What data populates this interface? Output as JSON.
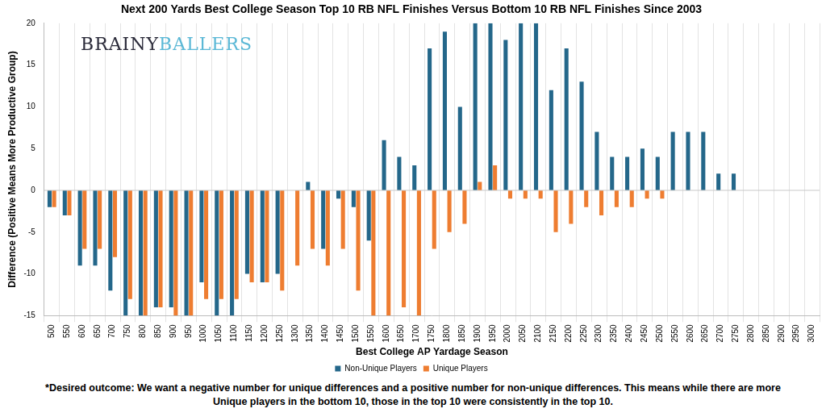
{
  "chart_data": {
    "type": "bar",
    "title": "Next 200 Yards Best College Season Top 10 RB NFL Finishes Versus Bottom 10 RB NFL Finishes Since 2003",
    "x_label": "Best College AP Yardage Season",
    "y_label": "Difference (Positive Means More Productive Group)",
    "annotations": [
      "BRAINYBALLERS",
      "*Desired outcome: We want a negative number for unique differences and a positive number for non-unique differences. This means while there are more Unique players in the bottom 10, those in the top 10 were consistently in the top 10."
    ],
    "categories": [
      "500",
      "550",
      "600",
      "650",
      "700",
      "750",
      "800",
      "850",
      "900",
      "950",
      "1000",
      "1050",
      "1100",
      "1150",
      "1200",
      "1250",
      "1300",
      "1350",
      "1400",
      "1450",
      "1500",
      "1550",
      "1600",
      "1650",
      "1700",
      "1750",
      "1800",
      "1850",
      "1900",
      "1950",
      "2000",
      "2050",
      "2100",
      "2150",
      "2200",
      "2250",
      "2300",
      "2350",
      "2400",
      "2450",
      "2500",
      "2550",
      "2600",
      "2650",
      "2700",
      "2750",
      "2800",
      "2850",
      "2900",
      "2950",
      "3000"
    ],
    "series": [
      {
        "name": "Non-Unique Players",
        "color": "#24678a",
        "values": [
          -2,
          -3,
          -9,
          -9,
          -12,
          -15,
          -15,
          -14,
          -14,
          -15,
          -11,
          -15,
          -15,
          -10,
          -11,
          -10,
          0,
          1,
          -7,
          -1,
          -2,
          -6,
          6,
          4,
          3,
          17,
          19,
          10,
          20,
          20,
          18,
          20,
          20,
          12,
          17,
          13,
          7,
          4,
          4,
          5,
          4,
          7,
          7,
          7,
          2,
          2,
          0,
          0,
          0,
          0,
          0
        ]
      },
      {
        "name": "Unique Players",
        "color": "#ee7d31",
        "values": [
          -2,
          -3,
          -7,
          -7,
          -8,
          -13,
          -15,
          -14,
          -15,
          -15,
          -13,
          -13,
          -13,
          -11,
          -11,
          -12,
          -9,
          -7,
          -9,
          -7,
          -12,
          -15,
          -15,
          -14,
          -15,
          -7,
          -5,
          -4,
          1,
          3,
          -1,
          -1,
          -1,
          -5,
          -4,
          -2,
          -3,
          -2,
          -2,
          -1,
          -1,
          0,
          0,
          0,
          0,
          0,
          0,
          0,
          0,
          0,
          0
        ]
      }
    ],
    "ylim": [
      -15,
      20
    ],
    "yticks": [
      -15,
      -10,
      -5,
      0,
      5,
      10,
      15,
      20
    ],
    "grid": true,
    "legend": "bottom"
  }
}
